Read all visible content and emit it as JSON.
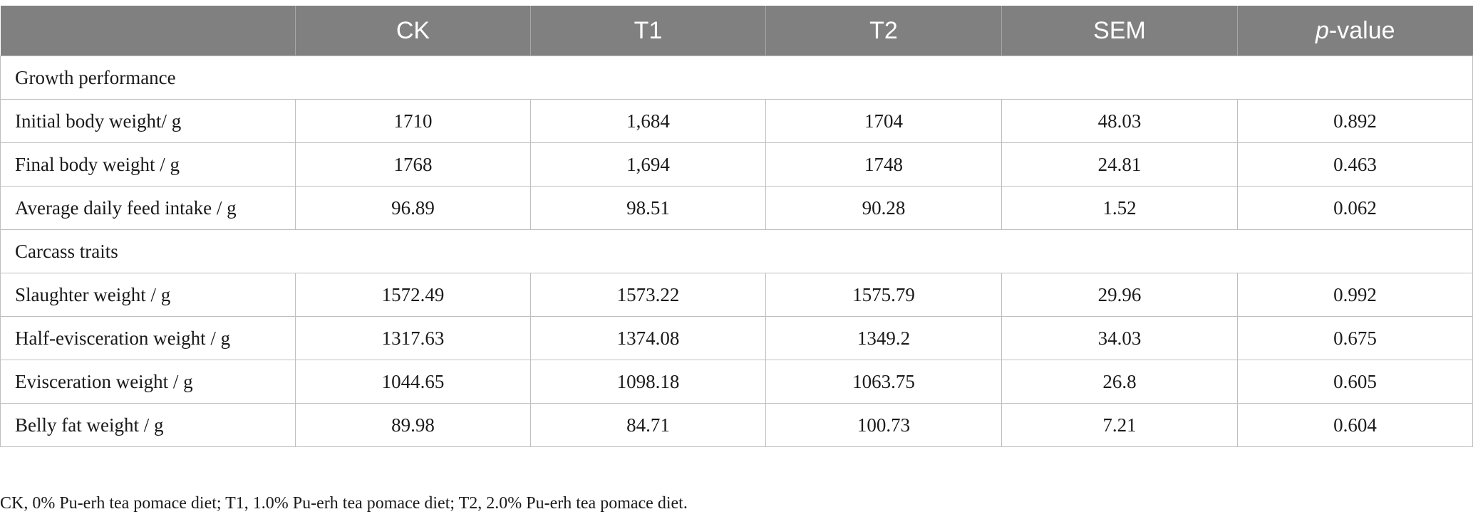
{
  "header": {
    "col0": "",
    "col1": "CK",
    "col2": "T1",
    "col3": "T2",
    "col4": "SEM",
    "col5_italic": "p",
    "col5_rest": "-value"
  },
  "sections": [
    {
      "title": "Growth performance",
      "rows": [
        {
          "label": "Initial body weight/ g",
          "ck": "1710",
          "t1": "1,684",
          "t2": "1704",
          "sem": "48.03",
          "p": "0.892"
        },
        {
          "label": "Final body weight / g",
          "ck": "1768",
          "t1": "1,694",
          "t2": "1748",
          "sem": "24.81",
          "p": "0.463"
        },
        {
          "label": "Average daily feed intake / g",
          "ck": "96.89",
          "t1": "98.51",
          "t2": "90.28",
          "sem": "1.52",
          "p": "0.062"
        }
      ]
    },
    {
      "title": "Carcass traits",
      "rows": [
        {
          "label": "Slaughter weight / g",
          "ck": "1572.49",
          "t1": "1573.22",
          "t2": "1575.79",
          "sem": "29.96",
          "p": "0.992"
        },
        {
          "label": "Half-evisceration weight / g",
          "ck": "1317.63",
          "t1": "1374.08",
          "t2": "1349.2",
          "sem": "34.03",
          "p": "0.675"
        },
        {
          "label": "Evisceration weight / g",
          "ck": "1044.65",
          "t1": "1098.18",
          "t2": "1063.75",
          "sem": "26.8",
          "p": "0.605"
        },
        {
          "label": "Belly fat weight / g",
          "ck": "89.98",
          "t1": "84.71",
          "t2": "100.73",
          "sem": "7.21",
          "p": "0.604"
        }
      ]
    }
  ],
  "footnote": "CK, 0% Pu-erh tea pomace diet; T1, 1.0% Pu-erh tea pomace diet; T2, 2.0% Pu-erh tea pomace diet."
}
